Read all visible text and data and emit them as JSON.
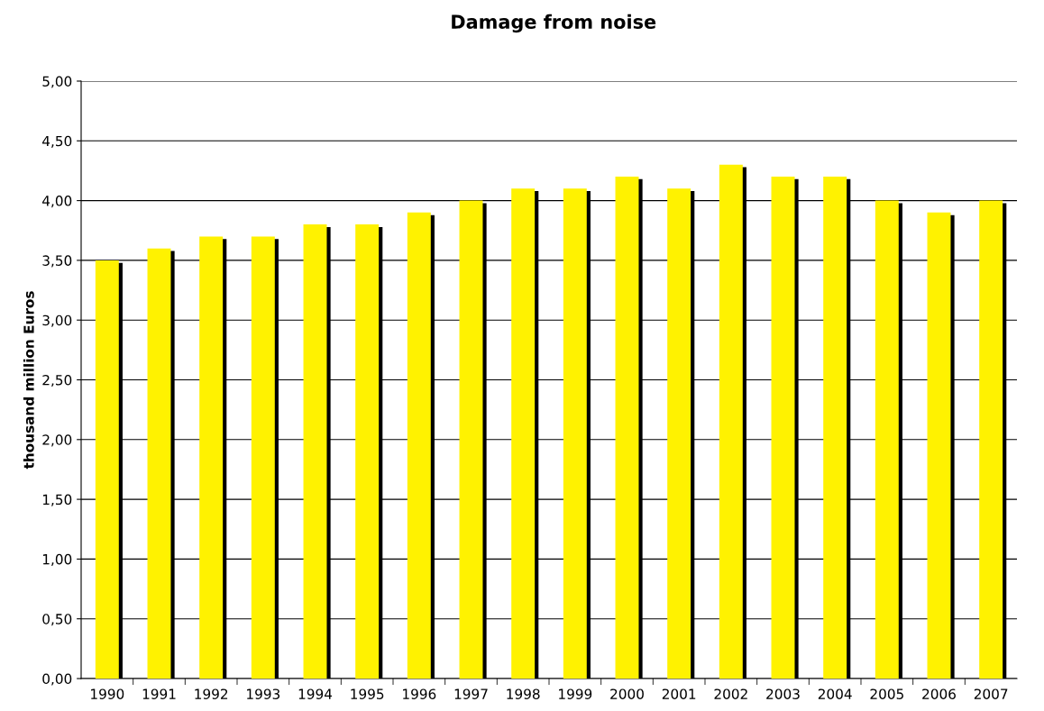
{
  "chart_data": {
    "type": "bar",
    "title": "Damage from noise",
    "ylabel": "thousand million Euros",
    "categories": [
      "1990",
      "1991",
      "1992",
      "1993",
      "1994",
      "1995",
      "1996",
      "1997",
      "1998",
      "1999",
      "2000",
      "2001",
      "2002",
      "2003",
      "2004",
      "2005",
      "2006",
      "2007"
    ],
    "values": [
      3.5,
      3.6,
      3.7,
      3.7,
      3.8,
      3.8,
      3.9,
      4.0,
      4.1,
      4.1,
      4.2,
      4.1,
      4.3,
      4.2,
      4.2,
      4.0,
      3.9,
      4.0
    ],
    "color": "#fff200",
    "ylim": [
      0,
      5
    ],
    "yticks": [
      {
        "value": 0,
        "label": "0,00"
      },
      {
        "value": 0.5,
        "label": "0,50"
      },
      {
        "value": 1,
        "label": "1,00"
      },
      {
        "value": 1.5,
        "label": "1,50"
      },
      {
        "value": 2,
        "label": "2,00"
      },
      {
        "value": 2.5,
        "label": "2,50"
      },
      {
        "value": 3,
        "label": "3,00"
      },
      {
        "value": 3.5,
        "label": "3,50"
      },
      {
        "value": 4,
        "label": "4,00"
      },
      {
        "value": 4.5,
        "label": "4,50"
      },
      {
        "value": 5,
        "label": "5,00"
      }
    ],
    "grid": "y",
    "legend": false
  }
}
